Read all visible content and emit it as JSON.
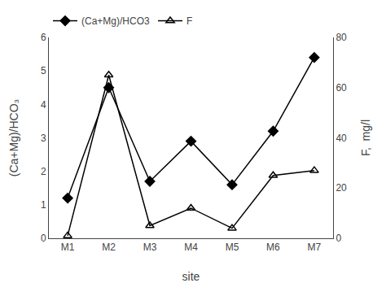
{
  "chart_data": {
    "type": "line",
    "categories": [
      "M1",
      "M2",
      "M3",
      "M4",
      "M5",
      "M6",
      "M7"
    ],
    "series": [
      {
        "name": "(Ca+Mg)/HCO3",
        "color": "black",
        "marker": "diamond",
        "values": [
          1.2,
          4.5,
          1.7,
          2.9,
          1.6,
          3.2,
          5.4
        ]
      },
      {
        "name": "F",
        "color": "black",
        "marker": "triangle-up-open",
        "axis": "y2",
        "values": [
          1.0,
          65.0,
          5.0,
          12.0,
          4.0,
          25.0,
          27.0
        ]
      }
    ],
    "xlabel": "site",
    "ylabel": "(Ca+Mg)/HCO₃",
    "y2label": "F,  mg/l",
    "ylim": [
      0,
      6
    ],
    "yticks": [
      0,
      1,
      2,
      3,
      4,
      5,
      6
    ],
    "y2lim": [
      0,
      80
    ],
    "y2ticks": [
      0,
      20,
      40,
      60,
      80
    ],
    "grid": false,
    "legend": "top"
  }
}
